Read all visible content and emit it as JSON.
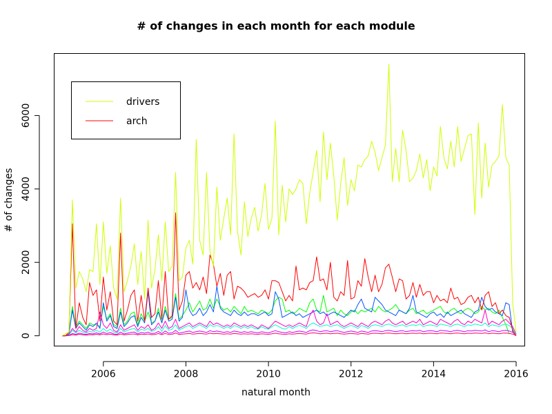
{
  "chart_data": {
    "type": "line",
    "title": "# of changes in each month for each module",
    "xlabel": "natural month",
    "ylabel": "# of changes",
    "xlim": [
      2004.8,
      2016.2
    ],
    "ylim": [
      -270,
      7700
    ],
    "x_ticks": [
      2006,
      2008,
      2010,
      2012,
      2014,
      2016
    ],
    "x_tick_labels": [
      "2006",
      "2008",
      "2010",
      "2012",
      "2014",
      "2016"
    ],
    "y_ticks": [
      0,
      2000,
      4000,
      6000
    ],
    "y_tick_labels": [
      "0",
      "2000",
      "4000",
      "6000"
    ],
    "grid": false,
    "legend_position": "top-left",
    "legend": [
      {
        "label": "drivers",
        "color": "#CCFF00"
      },
      {
        "label": "arch",
        "color": "#FF0000"
      }
    ],
    "x_start": 2005.0,
    "x_step": 0.08333,
    "series": [
      {
        "name": "drivers",
        "color": "#CCFF00",
        "values": [
          0,
          50,
          100,
          3700,
          1300,
          1750,
          1550,
          1200,
          1800,
          1750,
          3050,
          1400,
          3100,
          1700,
          2450,
          1300,
          1000,
          3750,
          1200,
          1500,
          1900,
          2500,
          1400,
          2300,
          1000,
          3150,
          1300,
          1800,
          2750,
          1500,
          3100,
          1750,
          1900,
          4450,
          1500,
          1600,
          2400,
          2600,
          1950,
          5350,
          2600,
          2200,
          4450,
          2300,
          1900,
          4050,
          2600,
          3200,
          3750,
          2750,
          5500,
          2850,
          2200,
          3650,
          2700,
          3200,
          3500,
          2850,
          3300,
          4150,
          2900,
          3200,
          5850,
          2750,
          4100,
          3100,
          4000,
          3850,
          4000,
          4250,
          4150,
          3050,
          3900,
          4450,
          5050,
          3650,
          5550,
          4250,
          5250,
          4350,
          3150,
          4150,
          4850,
          3550,
          4250,
          3950,
          4650,
          4600,
          4800,
          4900,
          5300,
          5000,
          4500,
          4850,
          5200,
          7400,
          4200,
          5100,
          4200,
          5600,
          5050,
          4200,
          4300,
          4500,
          4950,
          4300,
          4800,
          3950,
          4600,
          4350,
          5700,
          4850,
          4550,
          5300,
          4600,
          5700,
          4750,
          5100,
          5450,
          5500,
          3300,
          5800,
          3750,
          5250,
          4050,
          4650,
          4750,
          4900,
          6300,
          4850,
          4650,
          900,
          100
        ]
      },
      {
        "name": "arch",
        "color": "#FF0000",
        "values": [
          0,
          0,
          100,
          3050,
          200,
          900,
          500,
          300,
          1450,
          1100,
          1250,
          400,
          1600,
          700,
          1200,
          400,
          300,
          2800,
          400,
          700,
          1100,
          1250,
          400,
          1100,
          400,
          1300,
          500,
          600,
          1500,
          450,
          1750,
          450,
          550,
          3350,
          700,
          950,
          1650,
          1750,
          1300,
          1450,
          1250,
          1600,
          1150,
          2200,
          1950,
          1350,
          1700,
          1100,
          1650,
          1750,
          1000,
          1350,
          1300,
          1200,
          1050,
          1100,
          1150,
          1050,
          1100,
          1250,
          1000,
          1500,
          1500,
          1450,
          1200,
          950,
          1100,
          950,
          1900,
          1250,
          1300,
          1250,
          1450,
          1500,
          2150,
          1500,
          1550,
          1250,
          2000,
          1050,
          950,
          1200,
          1100,
          2050,
          1000,
          1050,
          1500,
          1350,
          2100,
          1600,
          1200,
          1650,
          1200,
          1400,
          1850,
          1950,
          1600,
          1200,
          1550,
          1500,
          1000,
          1100,
          1450,
          1050,
          1400,
          1100,
          1200,
          1200,
          900,
          1100,
          950,
          1000,
          900,
          1300,
          1000,
          1050,
          850,
          900,
          1050,
          1100,
          900,
          1050,
          700,
          1100,
          1200,
          800,
          900,
          600,
          700,
          550,
          500,
          150,
          0
        ]
      },
      {
        "name": "",
        "color": "#00FF00",
        "values": [
          0,
          0,
          50,
          800,
          250,
          400,
          300,
          200,
          350,
          300,
          300,
          250,
          800,
          450,
          600,
          300,
          250,
          750,
          300,
          400,
          600,
          650,
          300,
          600,
          400,
          650,
          350,
          400,
          750,
          350,
          800,
          450,
          500,
          1150,
          450,
          550,
          700,
          900,
          650,
          800,
          950,
          700,
          750,
          1000,
          750,
          1000,
          800,
          700,
          750,
          650,
          800,
          700,
          600,
          800,
          650,
          700,
          650,
          600,
          700,
          650,
          600,
          700,
          950,
          1050,
          1000,
          650,
          700,
          600,
          650,
          750,
          700,
          650,
          900,
          1000,
          700,
          650,
          1100,
          650,
          700,
          750,
          550,
          700,
          600,
          550,
          650,
          700,
          600,
          700,
          650,
          700,
          750,
          650,
          800,
          700,
          650,
          700,
          750,
          850,
          700,
          650,
          600,
          700,
          750,
          600,
          650,
          700,
          600,
          650,
          700,
          750,
          800,
          650,
          600,
          700,
          750,
          650,
          600,
          700,
          750,
          700,
          600,
          650,
          800,
          700,
          750,
          650,
          600,
          700,
          500,
          300,
          50
        ]
      },
      {
        "name": "",
        "color": "#0055FF",
        "values": [
          0,
          0,
          50,
          700,
          200,
          350,
          250,
          150,
          300,
          250,
          350,
          200,
          900,
          400,
          550,
          250,
          200,
          650,
          250,
          350,
          500,
          550,
          250,
          500,
          350,
          1200,
          300,
          400,
          650,
          350,
          700,
          400,
          450,
          1050,
          400,
          500,
          1250,
          700,
          550,
          600,
          750,
          550,
          650,
          850,
          650,
          1350,
          750,
          650,
          600,
          550,
          700,
          600,
          550,
          650,
          550,
          600,
          600,
          550,
          600,
          650,
          550,
          600,
          1200,
          1000,
          500,
          550,
          600,
          650,
          550,
          600,
          500,
          550,
          600,
          650,
          700,
          600,
          650,
          550,
          600,
          650,
          600,
          550,
          500,
          600,
          700,
          650,
          850,
          1000,
          750,
          700,
          650,
          1050,
          950,
          850,
          700,
          650,
          600,
          550,
          700,
          650,
          600,
          750,
          1100,
          650,
          600,
          550,
          500,
          600,
          650,
          550,
          600,
          500,
          650,
          550,
          600,
          650,
          700,
          600,
          550,
          500,
          650,
          700,
          1050,
          800,
          700,
          750,
          650,
          600,
          550,
          900,
          850,
          100
        ]
      },
      {
        "name": "",
        "color": "#FF00CC",
        "values": [
          0,
          0,
          30,
          200,
          100,
          250,
          150,
          100,
          200,
          150,
          200,
          650,
          300,
          200,
          350,
          150,
          100,
          300,
          150,
          200,
          250,
          300,
          150,
          250,
          200,
          300,
          150,
          200,
          350,
          200,
          400,
          200,
          250,
          450,
          200,
          250,
          300,
          350,
          250,
          300,
          350,
          300,
          250,
          400,
          300,
          350,
          300,
          250,
          300,
          250,
          350,
          300,
          250,
          300,
          250,
          300,
          250,
          200,
          300,
          250,
          200,
          300,
          400,
          350,
          300,
          250,
          300,
          250,
          300,
          350,
          300,
          250,
          550,
          700,
          400,
          300,
          350,
          600,
          300,
          350,
          400,
          300,
          250,
          300,
          350,
          300,
          250,
          350,
          300,
          250,
          350,
          400,
          350,
          300,
          400,
          450,
          350,
          300,
          350,
          400,
          300,
          350,
          400,
          350,
          450,
          300,
          350,
          400,
          350,
          300,
          450,
          400,
          350,
          300,
          400,
          450,
          350,
          300,
          400,
          350,
          450,
          400,
          350,
          700,
          300,
          400,
          350,
          300,
          400,
          450,
          350,
          250,
          50
        ]
      },
      {
        "name": "",
        "color": "#00FFCC",
        "values": [
          0,
          0,
          20,
          150,
          80,
          150,
          100,
          80,
          120,
          100,
          150,
          100,
          200,
          120,
          180,
          100,
          80,
          200,
          100,
          150,
          180,
          200,
          100,
          180,
          150,
          200,
          120,
          150,
          250,
          120,
          280,
          150,
          180,
          300,
          150,
          200,
          250,
          280,
          200,
          250,
          300,
          250,
          200,
          300,
          250,
          280,
          250,
          200,
          250,
          200,
          280,
          250,
          200,
          250,
          200,
          250,
          200,
          180,
          250,
          200,
          180,
          250,
          300,
          250,
          200,
          180,
          250,
          200,
          250,
          280,
          250,
          200,
          300,
          350,
          300,
          250,
          280,
          300,
          250,
          280,
          300,
          250,
          200,
          250,
          280,
          250,
          200,
          280,
          250,
          200,
          280,
          300,
          280,
          250,
          300,
          320,
          280,
          250,
          280,
          300,
          250,
          280,
          300,
          280,
          320,
          250,
          280,
          300,
          280,
          250,
          320,
          300,
          280,
          250,
          300,
          320,
          280,
          250,
          300,
          280,
          320,
          300,
          280,
          350,
          250,
          300,
          280,
          250,
          300,
          320,
          280,
          200,
          30
        ]
      },
      {
        "name": "",
        "color": "#CC00FF",
        "values": [
          0,
          0,
          10,
          60,
          40,
          70,
          50,
          40,
          60,
          50,
          80,
          50,
          100,
          60,
          90,
          50,
          40,
          100,
          50,
          70,
          90,
          100,
          50,
          90,
          70,
          100,
          60,
          70,
          120,
          60,
          130,
          70,
          80,
          150,
          70,
          90,
          110,
          130,
          90,
          110,
          130,
          110,
          90,
          140,
          110,
          130,
          110,
          90,
          110,
          90,
          130,
          110,
          90,
          110,
          90,
          110,
          90,
          80,
          110,
          90,
          80,
          110,
          140,
          110,
          90,
          80,
          110,
          90,
          110,
          130,
          110,
          90,
          140,
          160,
          140,
          110,
          130,
          140,
          110,
          130,
          140,
          110,
          90,
          110,
          130,
          110,
          90,
          130,
          110,
          90,
          130,
          140,
          130,
          110,
          140,
          150,
          130,
          110,
          130,
          140,
          110,
          130,
          140,
          130,
          150,
          110,
          130,
          140,
          130,
          110,
          150,
          140,
          130,
          110,
          140,
          150,
          130,
          110,
          140,
          130,
          150,
          140,
          130,
          160,
          110,
          140,
          130,
          110,
          140,
          150,
          130,
          90,
          10
        ]
      },
      {
        "name": "",
        "color": "#FF0066",
        "values": [
          0,
          0,
          5,
          30,
          20,
          40,
          25,
          20,
          30,
          25,
          40,
          25,
          50,
          30,
          45,
          25,
          20,
          50,
          25,
          35,
          45,
          50,
          25,
          45,
          35,
          50,
          30,
          35,
          60,
          30,
          65,
          35,
          40,
          75,
          35,
          45,
          55,
          65,
          45,
          55,
          65,
          55,
          45,
          70,
          55,
          65,
          55,
          45,
          55,
          45,
          65,
          55,
          45,
          55,
          45,
          55,
          45,
          40,
          55,
          45,
          40,
          55,
          70,
          55,
          45,
          40,
          55,
          45,
          55,
          65,
          55,
          45,
          70,
          80,
          70,
          55,
          65,
          70,
          55,
          65,
          70,
          55,
          45,
          55,
          65,
          55,
          45,
          65,
          55,
          45,
          65,
          70,
          65,
          55,
          70,
          75,
          65,
          55,
          65,
          70,
          55,
          65,
          70,
          65,
          75,
          55,
          65,
          70,
          65,
          55,
          75,
          70,
          65,
          55,
          70,
          75,
          65,
          55,
          70,
          65,
          75,
          70,
          65,
          80,
          55,
          70,
          65,
          55,
          70,
          75,
          65,
          45,
          5
        ]
      }
    ]
  }
}
